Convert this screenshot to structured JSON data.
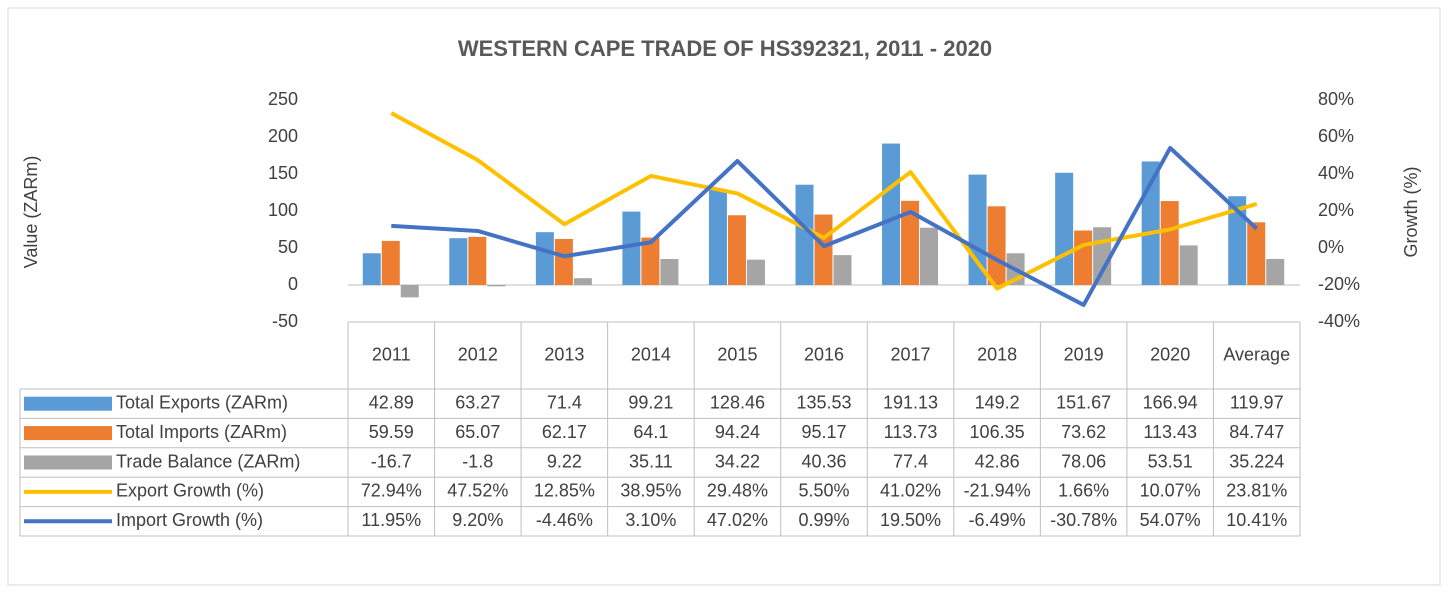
{
  "chart_data": {
    "type": "bar",
    "title": "WESTERN CAPE TRADE OF HS392321, 2011 - 2020",
    "y_label": "Value (ZARm)",
    "y2_label": "Growth (%)",
    "categories": [
      "2011",
      "2012",
      "2013",
      "2014",
      "2015",
      "2016",
      "2017",
      "2018",
      "2019",
      "2020",
      "Average"
    ],
    "series": [
      {
        "name": "Total Exports (ZARm)",
        "type": "bar",
        "color": "#5b9bd5",
        "values": [
          42.89,
          63.27,
          71.4,
          99.21,
          128.46,
          135.53,
          191.13,
          149.2,
          151.67,
          166.94,
          119.97
        ]
      },
      {
        "name": "Total Imports (ZARm)",
        "type": "bar",
        "color": "#ed7d31",
        "values": [
          59.59,
          65.07,
          62.17,
          64.1,
          94.24,
          95.17,
          113.73,
          106.35,
          73.62,
          113.43,
          84.747
        ]
      },
      {
        "name": "Trade Balance (ZARm)",
        "type": "bar",
        "color": "#a5a5a5",
        "values": [
          -16.7,
          -1.8,
          9.22,
          35.11,
          34.22,
          40.36,
          77.4,
          42.86,
          78.06,
          53.51,
          35.224
        ]
      },
      {
        "name": "Export Growth (%)",
        "type": "line",
        "axis": "y2",
        "color": "#ffc000",
        "values": [
          72.94,
          47.52,
          12.85,
          38.95,
          29.48,
          5.5,
          41.02,
          -21.94,
          1.66,
          10.07,
          23.81
        ],
        "value_labels": [
          "72.94%",
          "47.52%",
          "12.85%",
          "38.95%",
          "29.48%",
          "5.50%",
          "41.02%",
          "-21.94%",
          "1.66%",
          "10.07%",
          "23.81%"
        ]
      },
      {
        "name": "Import Growth (%)",
        "type": "line",
        "axis": "y2",
        "color": "#4472c4",
        "values": [
          11.95,
          9.2,
          -4.46,
          3.1,
          47.02,
          0.99,
          19.5,
          -6.49,
          -30.78,
          54.07,
          10.41
        ],
        "value_labels": [
          "11.95%",
          "9.20%",
          "-4.46%",
          "3.10%",
          "47.02%",
          "0.99%",
          "19.50%",
          "-6.49%",
          "-30.78%",
          "54.07%",
          "10.41%"
        ]
      }
    ],
    "ylim": [
      -50,
      250
    ],
    "yticks": [
      -50,
      0,
      50,
      100,
      150,
      200,
      250
    ],
    "y2lim": [
      -40,
      80
    ],
    "y2ticks": [
      {
        "value": -40,
        "label": "-40%"
      },
      {
        "value": -20,
        "label": "-20%"
      },
      {
        "value": 0,
        "label": "0%"
      },
      {
        "value": 20,
        "label": "20%"
      },
      {
        "value": 40,
        "label": "40%"
      },
      {
        "value": 60,
        "label": "60%"
      },
      {
        "value": 80,
        "label": "80%"
      }
    ],
    "grid": false
  }
}
